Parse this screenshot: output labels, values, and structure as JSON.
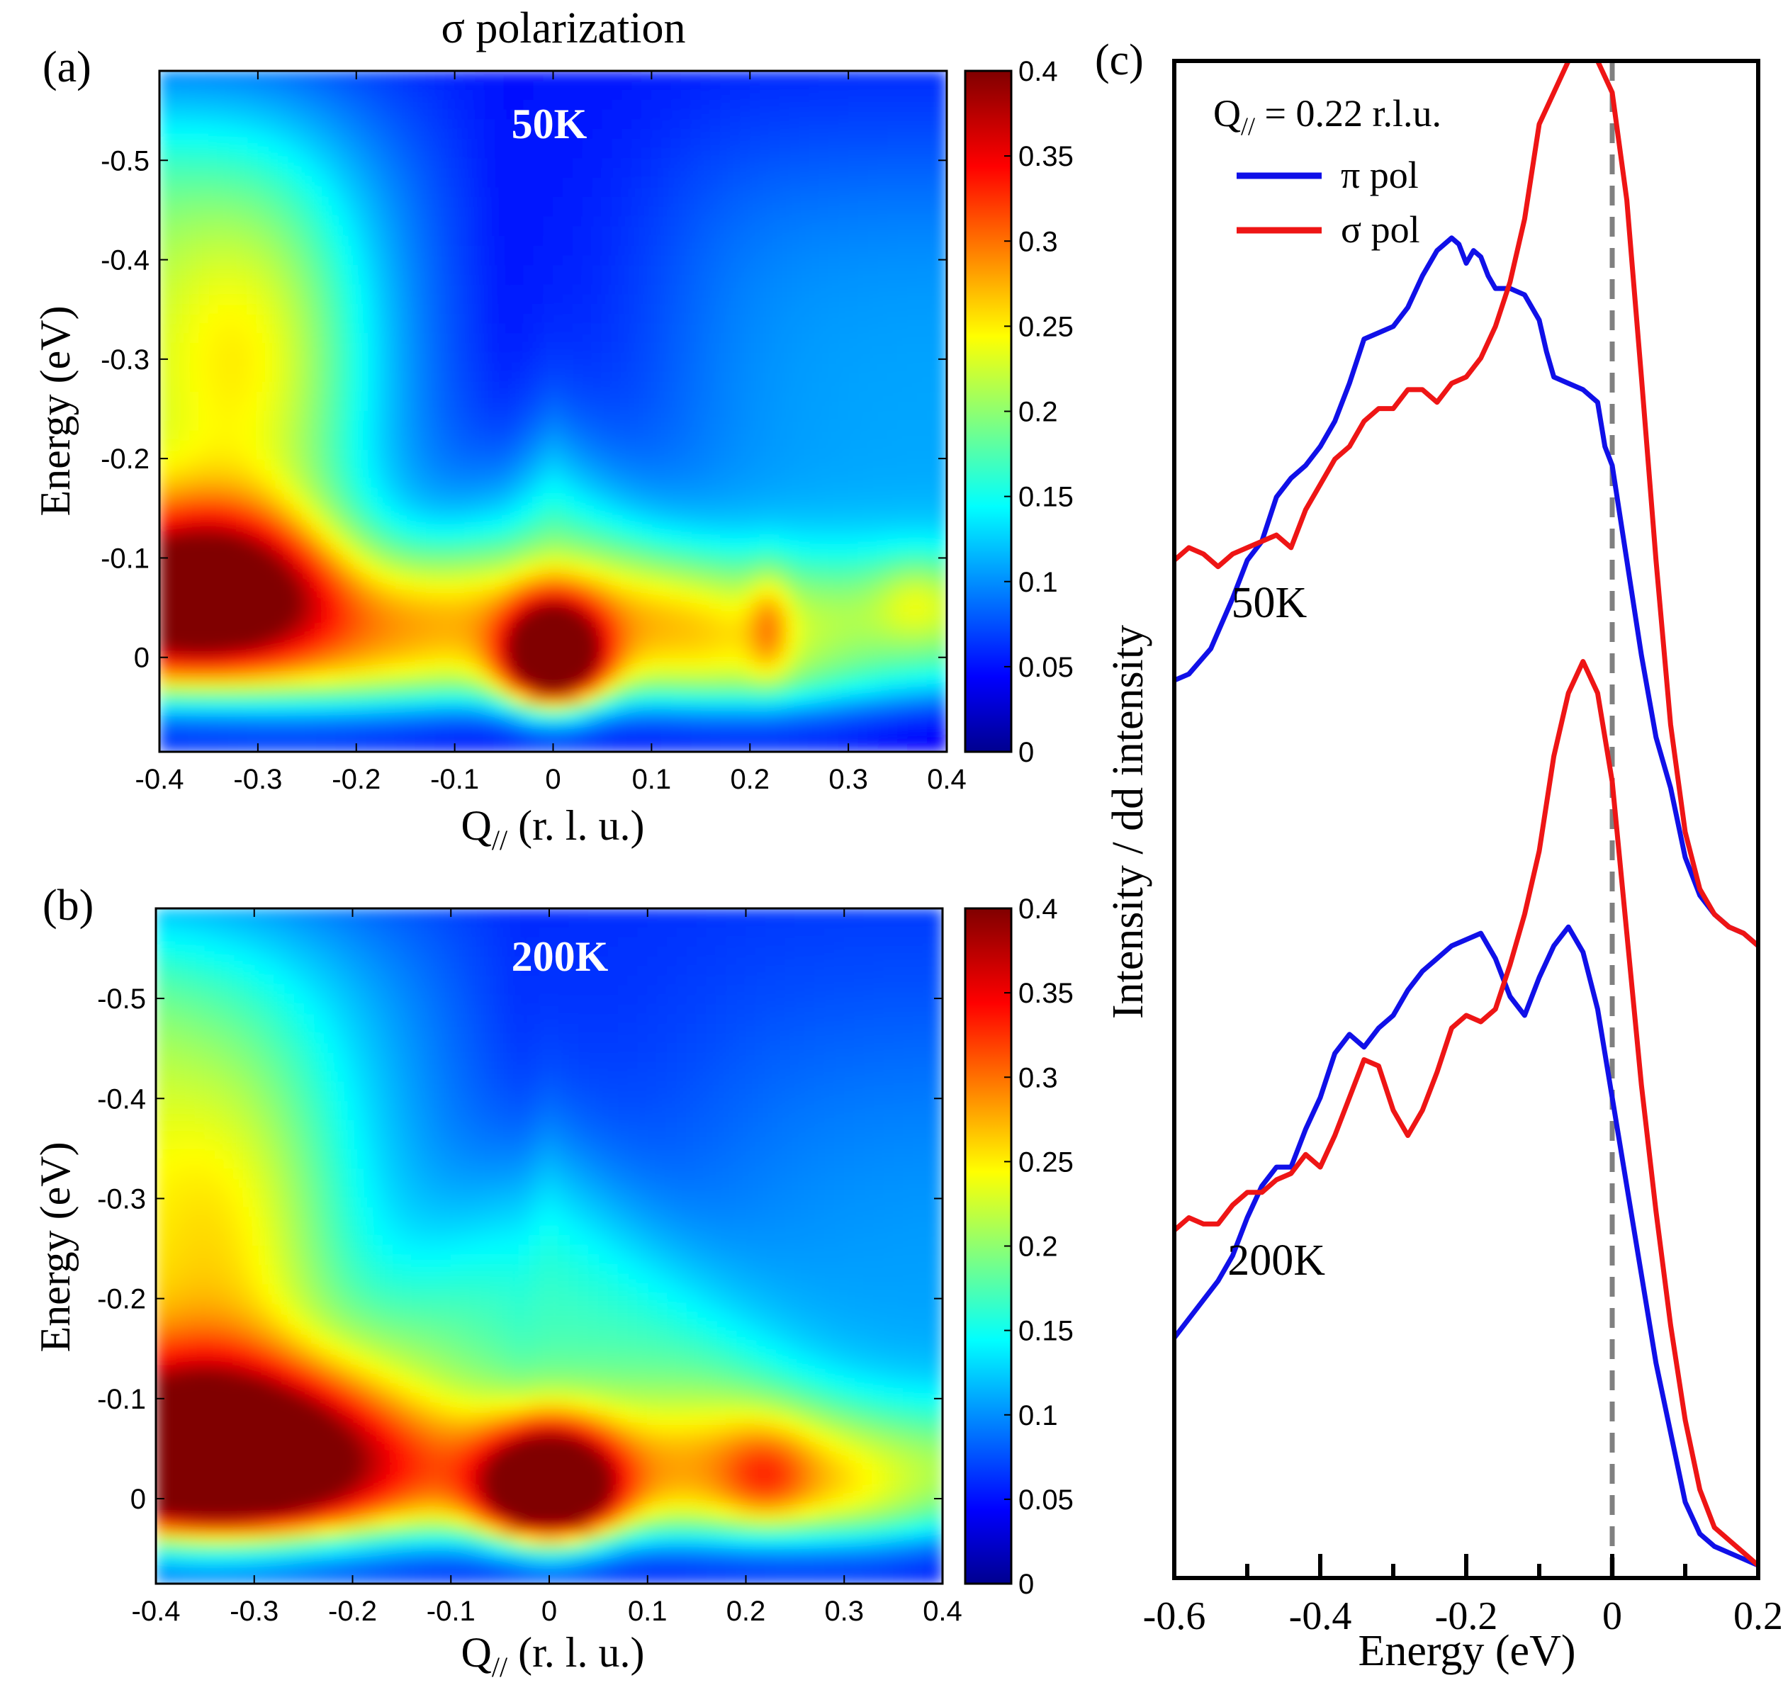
{
  "figure_title": "σ polarization",
  "colorbar": {
    "ticks": [
      "0",
      "0.05",
      "0.1",
      "0.15",
      "0.2",
      "0.25",
      "0.3",
      "0.35",
      "0.4"
    ],
    "range": [
      0,
      0.4
    ],
    "colormap": "jet"
  },
  "chart_data": [
    {
      "type": "heatmap",
      "panel_label": "(a)",
      "annotation": "50K",
      "xlabel": "Q",
      "xlabel_sub": "//",
      "xlabel_rest": " (r. l. u.)",
      "ylabel": "Energy (eV)",
      "xlim": [
        -0.4,
        0.4
      ],
      "ylim": [
        -0.59,
        0.095
      ],
      "xticks": [
        "-0.4",
        "-0.3",
        "-0.2",
        "-0.1",
        "0",
        "0.1",
        "0.2",
        "0.3",
        "0.4"
      ],
      "yticks": [
        "-0.5",
        "-0.4",
        "-0.3",
        "-0.2",
        "-0.1",
        "0"
      ],
      "features": {
        "elastic_peak": {
          "q": 0.0,
          "e": 0.01,
          "intensity": 0.42
        },
        "low_q_band": {
          "q": -0.35,
          "e": -0.07,
          "intensity": 0.4
        },
        "dispersion_min": {
          "q": 0.0,
          "e": -0.2
        },
        "phonon_band_energy": -0.04,
        "side_peaks_q": [
          0.22,
          0.37
        ]
      }
    },
    {
      "type": "heatmap",
      "panel_label": "(b)",
      "annotation": "200K",
      "xlabel": "Q",
      "xlabel_sub": "//",
      "xlabel_rest": " (r. l. u.)",
      "ylabel": "Energy (eV)",
      "xlim": [
        -0.4,
        0.4
      ],
      "ylim": [
        -0.59,
        0.085
      ],
      "xticks": [
        "-0.4",
        "-0.3",
        "-0.2",
        "-0.1",
        "0",
        "0.1",
        "0.2",
        "0.3",
        "0.4"
      ],
      "yticks": [
        "-0.5",
        "-0.4",
        "-0.3",
        "-0.2",
        "-0.1",
        "0"
      ],
      "features": {
        "elastic_peak": {
          "q": 0.0,
          "e": 0.0,
          "intensity": 0.43
        },
        "low_q_band": {
          "q": -0.35,
          "e": -0.05,
          "intensity": 0.42
        },
        "dispersion_min": {
          "q": 0.0,
          "e": -0.33
        },
        "phonon_band_energy": -0.03,
        "side_peaks_q": [
          0.22
        ]
      }
    },
    {
      "type": "line",
      "panel_label": "(c)",
      "xlabel": "Energy (eV)",
      "ylabel": "Intensity / dd intensity",
      "xlim": [
        -0.6,
        0.2
      ],
      "ylim": [
        -0.1,
        2.3
      ],
      "xticks": [
        "-0.6",
        "-0.4",
        "-0.2",
        "0",
        "0.2"
      ],
      "legend_title": "Q",
      "legend_title_sub": "//",
      "legend_title_rest": " = 0.22 r.l.u.",
      "legend_position": "top-left",
      "vline_x": 0.0,
      "group_labels": [
        {
          "text": "50K",
          "x": -0.47,
          "y": 1.42
        },
        {
          "text": "200K",
          "x": -0.46,
          "y": 0.38
        }
      ],
      "series": [
        {
          "name": "π pol",
          "color": "#1010e8",
          "group": "50K",
          "x": [
            -0.6,
            -0.58,
            -0.55,
            -0.52,
            -0.5,
            -0.48,
            -0.46,
            -0.44,
            -0.42,
            -0.4,
            -0.38,
            -0.36,
            -0.34,
            -0.32,
            -0.3,
            -0.28,
            -0.26,
            -0.24,
            -0.22,
            -0.21,
            -0.2,
            -0.19,
            -0.18,
            -0.17,
            -0.16,
            -0.14,
            -0.12,
            -0.1,
            -0.09,
            -0.08,
            -0.06,
            -0.04,
            -0.02,
            -0.01,
            0.0,
            0.02,
            0.04,
            0.06,
            0.08,
            0.1,
            0.12,
            0.14,
            0.16,
            0.18,
            0.2
          ],
          "y": [
            1.32,
            1.33,
            1.37,
            1.45,
            1.51,
            1.54,
            1.61,
            1.64,
            1.66,
            1.69,
            1.73,
            1.79,
            1.86,
            1.87,
            1.88,
            1.91,
            1.96,
            2.0,
            2.02,
            2.01,
            1.98,
            2.0,
            1.99,
            1.96,
            1.94,
            1.94,
            1.93,
            1.89,
            1.84,
            1.8,
            1.79,
            1.78,
            1.76,
            1.69,
            1.66,
            1.51,
            1.36,
            1.23,
            1.15,
            1.04,
            0.98,
            0.95,
            0.93,
            0.92,
            0.9
          ]
        },
        {
          "name": "σ pol",
          "color": "#ee1515",
          "group": "50K",
          "x": [
            -0.6,
            -0.58,
            -0.56,
            -0.54,
            -0.52,
            -0.5,
            -0.48,
            -0.46,
            -0.44,
            -0.42,
            -0.4,
            -0.38,
            -0.36,
            -0.34,
            -0.32,
            -0.3,
            -0.28,
            -0.26,
            -0.24,
            -0.22,
            -0.2,
            -0.18,
            -0.16,
            -0.14,
            -0.12,
            -0.1,
            -0.08,
            -0.06,
            -0.04,
            -0.02,
            0.0,
            0.02,
            0.04,
            0.06,
            0.08,
            0.1,
            0.12,
            0.14,
            0.16,
            0.18,
            0.2
          ],
          "y": [
            1.51,
            1.53,
            1.52,
            1.5,
            1.52,
            1.53,
            1.54,
            1.55,
            1.53,
            1.59,
            1.63,
            1.67,
            1.69,
            1.73,
            1.75,
            1.75,
            1.78,
            1.78,
            1.76,
            1.79,
            1.8,
            1.83,
            1.88,
            1.95,
            2.05,
            2.2,
            2.25,
            2.3,
            2.32,
            2.3,
            2.25,
            2.08,
            1.8,
            1.51,
            1.25,
            1.08,
            0.99,
            0.95,
            0.93,
            0.92,
            0.9
          ]
        },
        {
          "name": "π pol",
          "color": "#1010e8",
          "group": "200K",
          "x": [
            -0.6,
            -0.58,
            -0.56,
            -0.54,
            -0.52,
            -0.5,
            -0.48,
            -0.46,
            -0.44,
            -0.42,
            -0.4,
            -0.38,
            -0.36,
            -0.34,
            -0.32,
            -0.3,
            -0.28,
            -0.26,
            -0.24,
            -0.22,
            -0.2,
            -0.18,
            -0.16,
            -0.14,
            -0.12,
            -0.1,
            -0.08,
            -0.06,
            -0.04,
            -0.02,
            0.0,
            0.02,
            0.04,
            0.06,
            0.08,
            0.1,
            0.12,
            0.14,
            0.16,
            0.18,
            0.2
          ],
          "y": [
            0.28,
            0.31,
            0.34,
            0.37,
            0.41,
            0.47,
            0.52,
            0.55,
            0.55,
            0.61,
            0.66,
            0.73,
            0.76,
            0.74,
            0.77,
            0.79,
            0.83,
            0.86,
            0.88,
            0.9,
            0.91,
            0.92,
            0.88,
            0.82,
            0.79,
            0.85,
            0.9,
            0.93,
            0.89,
            0.8,
            0.66,
            0.52,
            0.38,
            0.24,
            0.13,
            0.02,
            -0.03,
            -0.05,
            -0.06,
            -0.07,
            -0.08
          ]
        },
        {
          "name": "σ pol",
          "color": "#ee1515",
          "group": "200K",
          "x": [
            -0.6,
            -0.58,
            -0.56,
            -0.54,
            -0.52,
            -0.5,
            -0.48,
            -0.46,
            -0.44,
            -0.42,
            -0.4,
            -0.38,
            -0.36,
            -0.34,
            -0.32,
            -0.3,
            -0.28,
            -0.26,
            -0.24,
            -0.22,
            -0.2,
            -0.18,
            -0.16,
            -0.14,
            -0.12,
            -0.1,
            -0.08,
            -0.06,
            -0.04,
            -0.02,
            0.0,
            0.02,
            0.04,
            0.06,
            0.08,
            0.1,
            0.12,
            0.14,
            0.16,
            0.18,
            0.2
          ],
          "y": [
            0.45,
            0.47,
            0.46,
            0.46,
            0.49,
            0.51,
            0.51,
            0.53,
            0.54,
            0.57,
            0.55,
            0.6,
            0.66,
            0.72,
            0.71,
            0.64,
            0.6,
            0.64,
            0.7,
            0.77,
            0.79,
            0.78,
            0.8,
            0.87,
            0.95,
            1.05,
            1.2,
            1.3,
            1.35,
            1.3,
            1.16,
            0.92,
            0.68,
            0.48,
            0.3,
            0.15,
            0.04,
            -0.02,
            -0.04,
            -0.06,
            -0.08
          ]
        }
      ]
    }
  ]
}
